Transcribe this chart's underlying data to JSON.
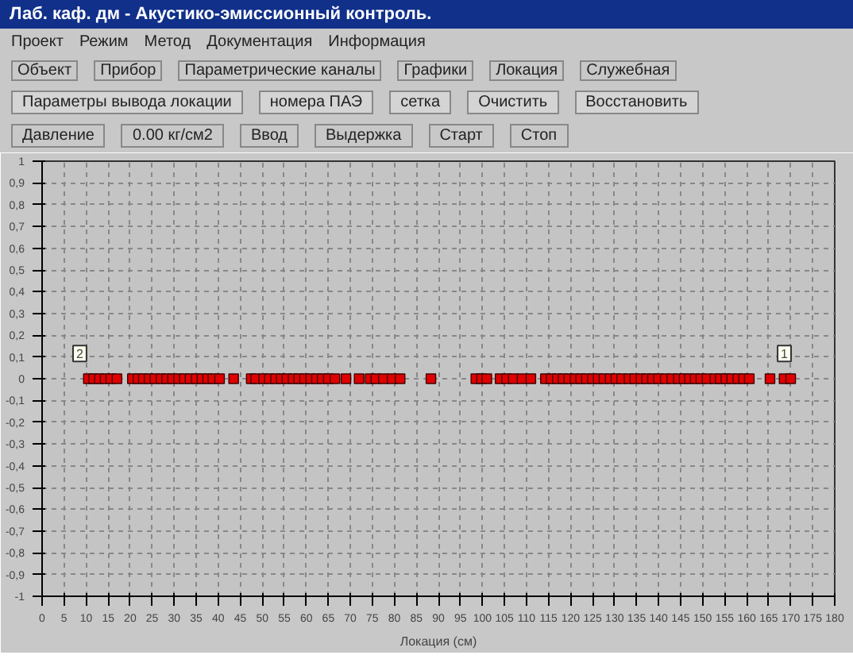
{
  "chart_data": {
    "type": "scatter",
    "title": "Лаб. каф. дм - Акустико-эмиссионный контроль.",
    "xlabel": "Локация (см)",
    "x": [
      10.5,
      11.7,
      13,
      14.3,
      15.6,
      17,
      20.5,
      21.8,
      23,
      24.3,
      25.6,
      27,
      28.3,
      29.6,
      31,
      32.3,
      33.6,
      35,
      36.3,
      37.6,
      38.8,
      40.3,
      43.5,
      47.5,
      48.5,
      50.3,
      51.6,
      53,
      54.3,
      55.6,
      57,
      58.3,
      59.6,
      61,
      62.3,
      63.6,
      65,
      66.5,
      69,
      72,
      74.5,
      75.8,
      77.5,
      79.5,
      81.3,
      88.3,
      98.5,
      99.8,
      101,
      104,
      105.5,
      107,
      109,
      111,
      114.3,
      115.6,
      117,
      118.3,
      119.6,
      121,
      122.3,
      123.6,
      125,
      126.3,
      127.6,
      129,
      130.3,
      131.6,
      133.3,
      134.6,
      136,
      137.3,
      138.6,
      140,
      141.5,
      143,
      144.5,
      145.8,
      147,
      148.3,
      149.6,
      151,
      152.8,
      154,
      155.3,
      156.6,
      158,
      159.3,
      160.6,
      165.3,
      168.5,
      170
    ],
    "series": [
      {
        "color": "#e00000",
        "values": [
          0,
          0,
          0,
          0,
          0,
          0,
          0,
          0,
          0,
          0,
          0,
          0,
          0,
          0,
          0,
          0,
          0,
          0,
          0,
          0,
          0,
          0,
          0,
          0,
          0,
          0,
          0,
          0,
          0,
          0,
          0,
          0,
          0,
          0,
          0,
          0,
          0,
          0,
          0,
          0,
          0,
          0,
          0,
          0,
          0,
          0,
          0,
          0,
          0,
          0,
          0,
          0,
          0,
          0,
          0,
          0,
          0,
          0,
          0,
          0,
          0,
          0,
          0,
          0,
          0,
          0,
          0,
          0,
          0,
          0,
          0,
          0,
          0,
          0,
          0,
          0,
          0,
          0,
          0,
          0,
          0,
          0,
          0,
          0,
          0,
          0,
          0,
          0,
          0,
          0,
          0,
          0
        ]
      }
    ],
    "marker": "square",
    "grid": true,
    "xlim": [
      0,
      180
    ],
    "xticks": [
      0,
      5,
      10,
      15,
      20,
      25,
      30,
      35,
      40,
      45,
      50,
      55,
      60,
      65,
      70,
      75,
      80,
      85,
      90,
      95,
      100,
      105,
      110,
      115,
      120,
      125,
      130,
      135,
      140,
      145,
      150,
      155,
      160,
      165,
      170,
      175,
      180
    ],
    "ylim": [
      -1,
      1
    ],
    "yticks": [
      {
        "value": -1,
        "label": "-1"
      },
      {
        "value": -0.9,
        "label": "-0,9"
      },
      {
        "value": -0.8,
        "label": "-0,8"
      },
      {
        "value": -0.7,
        "label": "-0,7"
      },
      {
        "value": -0.6,
        "label": "-0,6"
      },
      {
        "value": -0.5,
        "label": "-0,5"
      },
      {
        "value": -0.4,
        "label": "-0,4"
      },
      {
        "value": -0.3,
        "label": "-0,3"
      },
      {
        "value": -0.2,
        "label": "-0,2"
      },
      {
        "value": -0.1,
        "label": "-0,1"
      },
      0,
      {
        "value": 0.1,
        "label": "0,1"
      },
      {
        "value": 0.2,
        "label": "0,2"
      },
      {
        "value": 0.3,
        "label": "0,3"
      },
      {
        "value": 0.4,
        "label": "0,4"
      },
      {
        "value": 0.5,
        "label": "0,5"
      },
      {
        "value": 0.6,
        "label": "0,6"
      },
      {
        "value": 0.7,
        "label": "0,7"
      },
      {
        "value": 0.8,
        "label": "0,8"
      },
      {
        "value": 0.9,
        "label": "0,9"
      },
      1
    ],
    "annotations": [
      "Проект",
      "Режим",
      "Метод",
      "Документация",
      "Информация",
      "Объект",
      "Прибор",
      "Параметрические каналы",
      "Графики",
      "Локация",
      "Служебная",
      "Параметры вывода локации",
      "номера ПАЭ",
      "сетка",
      "Очистить",
      "Восстановить",
      "Давление",
      "0.00 кг/см2",
      "Ввод",
      "Выдержка",
      "Старт",
      "Стоп",
      {
        "text": "2",
        "x": 10,
        "y": 0.05
      },
      {
        "text": "1",
        "x": 170,
        "y": 0.05
      }
    ]
  }
}
